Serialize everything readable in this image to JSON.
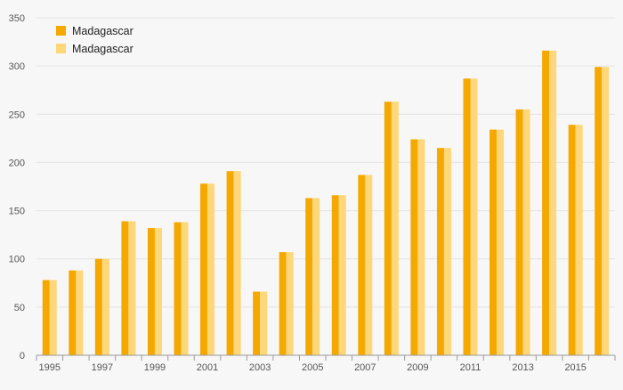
{
  "chart_data": {
    "type": "bar",
    "title": "",
    "xlabel": "",
    "ylabel": "",
    "ylim": [
      0,
      350
    ],
    "yticks": [
      0,
      50,
      100,
      150,
      200,
      250,
      300,
      350
    ],
    "grid": true,
    "legend_position": "top-left",
    "categories": [
      "1995",
      "1996",
      "1997",
      "1998",
      "1999",
      "2000",
      "2001",
      "2002",
      "2003",
      "2004",
      "2005",
      "2006",
      "2007",
      "2008",
      "2009",
      "2010",
      "2011",
      "2012",
      "2013",
      "2014",
      "2015",
      "2016"
    ],
    "x_tick_labels": [
      "1995",
      "1997",
      "1999",
      "2001",
      "2003",
      "2005",
      "2007",
      "2009",
      "2011",
      "2013",
      "2015"
    ],
    "series": [
      {
        "name": "Madagascar",
        "color": "#f5a800",
        "values": [
          78,
          88,
          100,
          139,
          132,
          138,
          178,
          191,
          66,
          107,
          163,
          166,
          187,
          263,
          224,
          215,
          287,
          234,
          255,
          316,
          239,
          299
        ]
      },
      {
        "name": "Madagascar",
        "color": "#fdd77a",
        "values": [
          78,
          88,
          100,
          139,
          132,
          138,
          178,
          191,
          66,
          107,
          163,
          166,
          187,
          263,
          224,
          215,
          287,
          234,
          255,
          316,
          239,
          299
        ]
      }
    ]
  }
}
